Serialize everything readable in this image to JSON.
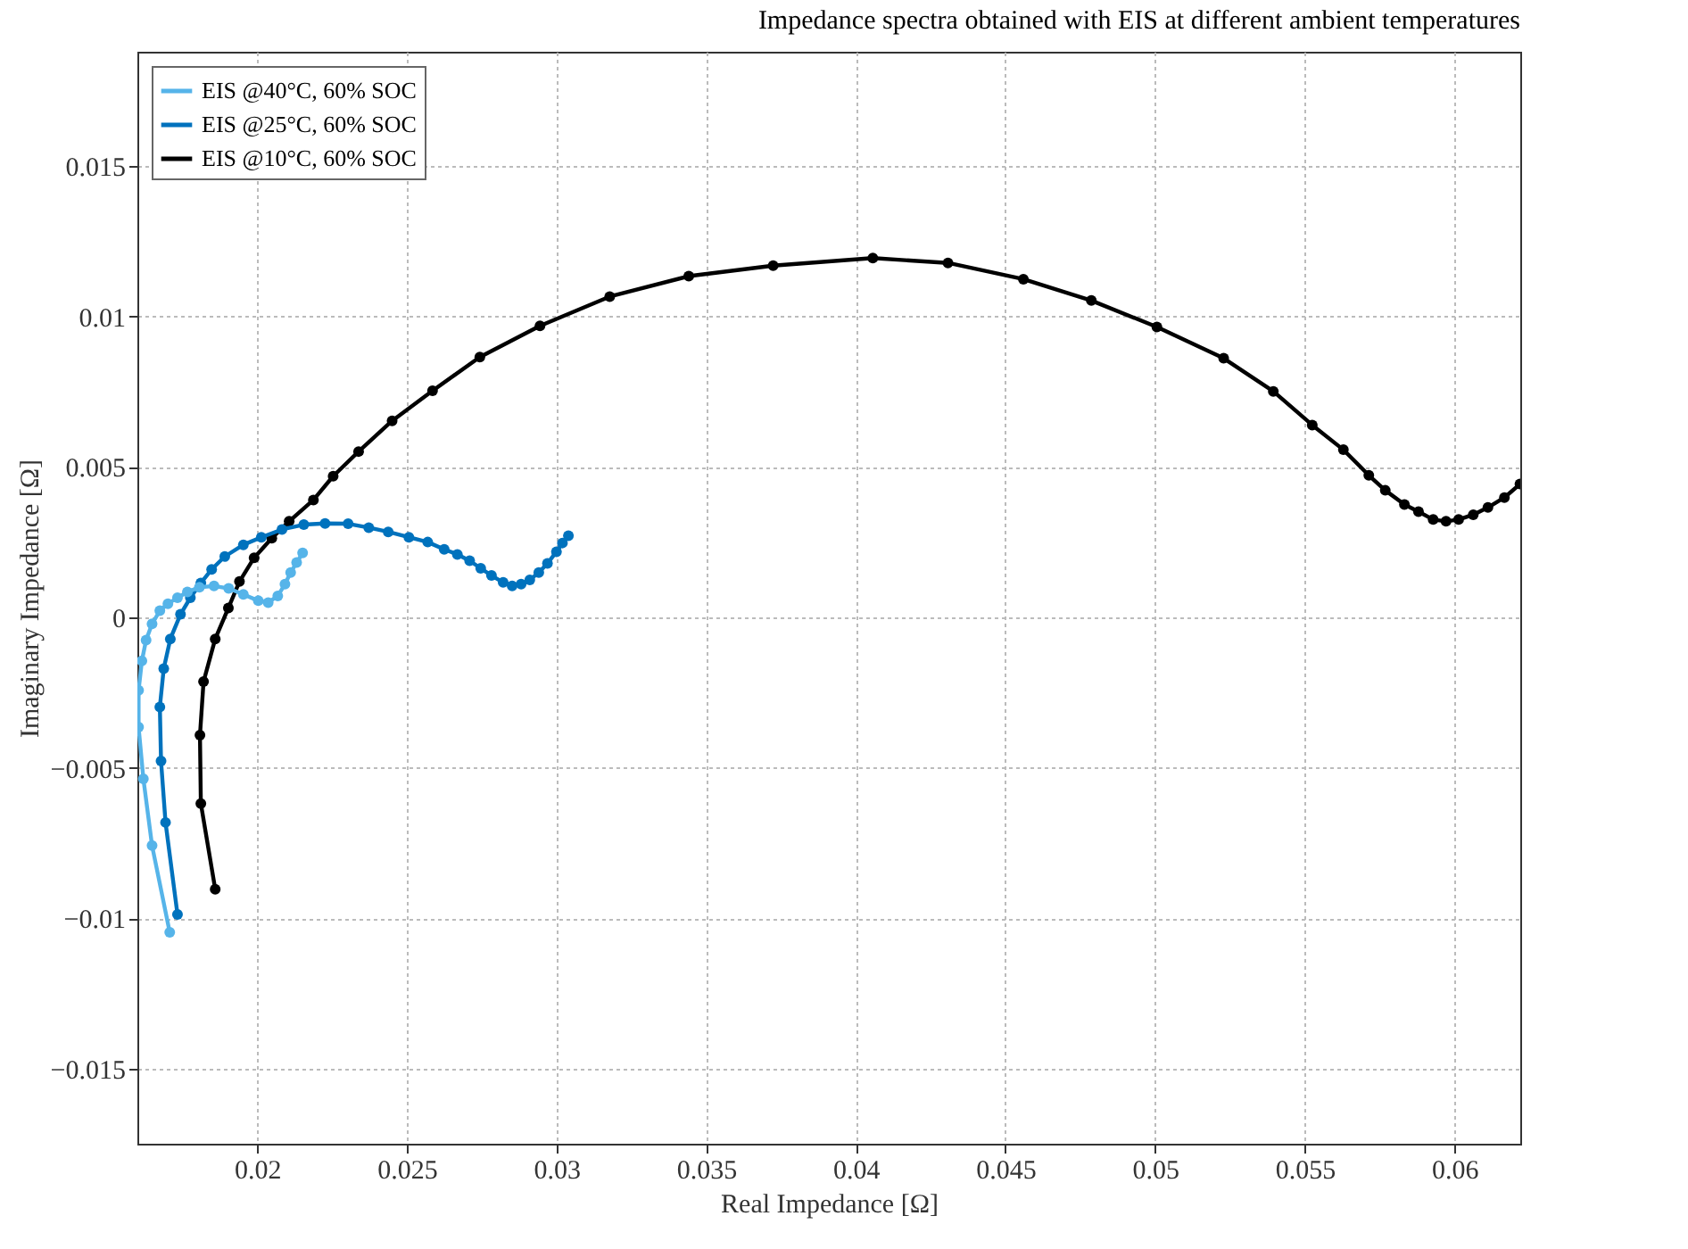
{
  "chart_data": {
    "type": "line",
    "title": "Impedance spectra obtained with EIS at different ambient temperatures",
    "xlabel": "Real Impedance [Ω]",
    "ylabel": "Imaginary Impedance [Ω]",
    "xlim": [
      0.016,
      0.0622
    ],
    "ylim": [
      -0.0175,
      0.0188
    ],
    "xticks": [
      0.02,
      0.025,
      0.03,
      0.035,
      0.04,
      0.045,
      0.05,
      0.055,
      0.06
    ],
    "yticks": [
      -0.015,
      -0.01,
      -0.005,
      0,
      0.005,
      0.01,
      0.015
    ],
    "grid": true,
    "legend": "top left",
    "marker": "circle",
    "line_style": "solid",
    "series": [
      {
        "name": "EIS @40°C, 60% SOC",
        "color": "#56b4e9",
        "x": [
          0.01708,
          0.01649,
          0.0162,
          0.01604,
          0.01604,
          0.01615,
          0.01629,
          0.01649,
          0.01675,
          0.01702,
          0.01734,
          0.01767,
          0.01807,
          0.01856,
          0.01905,
          0.01954,
          0.02004,
          0.02037,
          0.02069,
          0.02093,
          0.02112,
          0.02132,
          0.02152
        ],
        "values": [
          -0.01047,
          -0.00759,
          -0.00537,
          -0.00365,
          -0.00243,
          -0.00145,
          -0.00076,
          -0.00022,
          0.00022,
          0.00045,
          0.00065,
          0.00084,
          0.001,
          0.00104,
          0.00096,
          0.00076,
          0.00055,
          0.00049,
          0.00071,
          0.0011,
          0.00149,
          0.00182,
          0.00214
        ]
      },
      {
        "name": "EIS @25°C, 60% SOC",
        "color": "#0072bd",
        "x": [
          0.01734,
          0.01694,
          0.01679,
          0.01675,
          0.01688,
          0.0171,
          0.01744,
          0.01777,
          0.01812,
          0.01848,
          0.01892,
          0.01954,
          0.02014,
          0.02083,
          0.02156,
          0.02227,
          0.02304,
          0.02373,
          0.02438,
          0.02507,
          0.0257,
          0.02625,
          0.02669,
          0.0271,
          0.02747,
          0.02783,
          0.02822,
          0.02852,
          0.02882,
          0.02911,
          0.02941,
          0.0297,
          0.03,
          0.0302,
          0.0304
        ],
        "values": [
          -0.00988,
          -0.00682,
          -0.00478,
          -0.00298,
          -0.00171,
          -0.00072,
          0.0001,
          0.00065,
          0.00114,
          0.00159,
          0.00202,
          0.00241,
          0.00266,
          0.00292,
          0.00308,
          0.00312,
          0.00311,
          0.00298,
          0.00284,
          0.00266,
          0.0025,
          0.00226,
          0.00209,
          0.00188,
          0.00163,
          0.00139,
          0.00116,
          0.00104,
          0.0011,
          0.00124,
          0.00149,
          0.00179,
          0.00218,
          0.00247,
          0.00271
        ]
      },
      {
        "name": "EIS @10°C, 60% SOC",
        "color": "#000000",
        "x": [
          0.0186,
          0.01812,
          0.01809,
          0.01821,
          0.0186,
          0.01904,
          0.01941,
          0.0199,
          0.02049,
          0.02107,
          0.02188,
          0.02254,
          0.02339,
          0.02451,
          0.02586,
          0.02744,
          0.02945,
          0.03178,
          0.03442,
          0.03724,
          0.04057,
          0.04308,
          0.0456,
          0.04787,
          0.05006,
          0.05229,
          0.05395,
          0.05525,
          0.05629,
          0.05714,
          0.05769,
          0.05833,
          0.0588,
          0.05929,
          0.05972,
          0.06014,
          0.06063,
          0.06112,
          0.06167,
          0.06219
        ],
        "values": [
          -0.00904,
          -0.00619,
          -0.00392,
          -0.00214,
          -0.00072,
          0.00031,
          0.00119,
          0.00198,
          0.00263,
          0.00319,
          0.0039,
          0.00469,
          0.00551,
          0.00653,
          0.00753,
          0.00865,
          0.00969,
          0.01066,
          0.01134,
          0.01169,
          0.01194,
          0.01178,
          0.01124,
          0.01053,
          0.00965,
          0.00861,
          0.00751,
          0.00639,
          0.00557,
          0.00472,
          0.00422,
          0.00375,
          0.00351,
          0.00325,
          0.00319,
          0.00325,
          0.00341,
          0.00365,
          0.00398,
          0.00443
        ]
      }
    ]
  }
}
